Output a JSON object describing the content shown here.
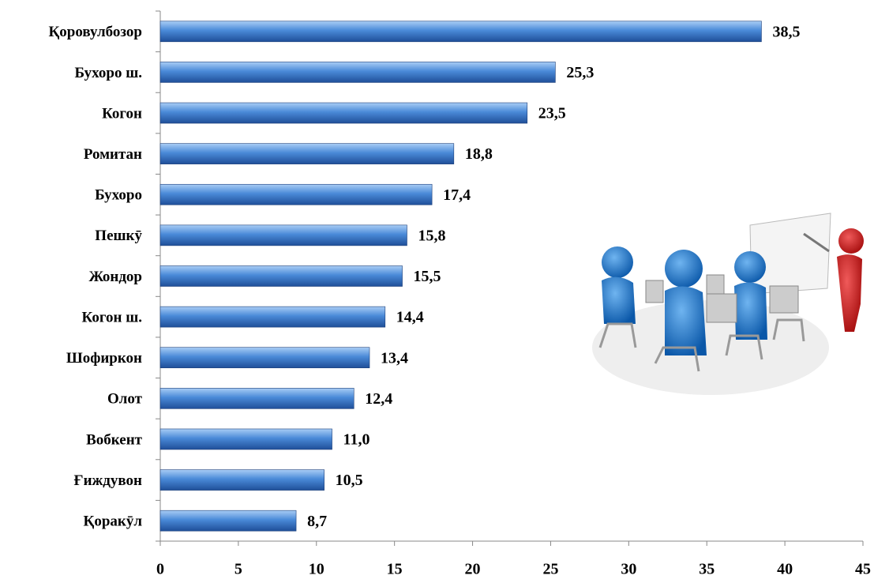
{
  "chart_data": {
    "type": "bar",
    "orientation": "horizontal",
    "categories": [
      "Қоровулбозор",
      "Бухоро ш.",
      "Когон",
      "Ромитан",
      "Бухоро",
      "Пешкӯ",
      "Жондор",
      "Когон ш.",
      "Шофиркон",
      "Олот",
      "Вобкент",
      "Ғиждувон",
      "Қоракӯл"
    ],
    "values": [
      38.5,
      25.3,
      23.5,
      18.8,
      17.4,
      15.8,
      15.5,
      14.4,
      13.4,
      12.4,
      11.0,
      10.5,
      8.7
    ],
    "value_labels": [
      "38,5",
      "25,3",
      "23,5",
      "18,8",
      "17,4",
      "15,8",
      "15,5",
      "14,4",
      "13,4",
      "12,4",
      "11,0",
      "10,5",
      "8,7"
    ],
    "color": "#3f7fd0",
    "xlim": [
      0,
      45
    ],
    "xticks": [
      0,
      5,
      10,
      15,
      20,
      25,
      30,
      35,
      40,
      45
    ],
    "grid": false
  }
}
